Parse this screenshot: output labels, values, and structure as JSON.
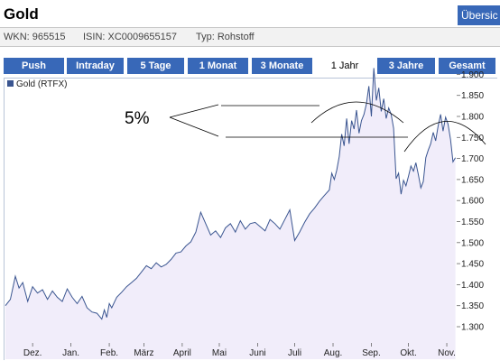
{
  "header": {
    "title": "Gold",
    "overview_label": "Übersic"
  },
  "meta": {
    "wkn": "WKN: 965515",
    "isin": "ISIN: XC0009655157",
    "typ": "Typ: Rohstoff"
  },
  "tabs": [
    {
      "label": "Push",
      "active": false
    },
    {
      "label": "Intraday",
      "active": false
    },
    {
      "label": "5 Tage",
      "active": false
    },
    {
      "label": "1 Monat",
      "active": false
    },
    {
      "label": "3 Monate",
      "active": false
    },
    {
      "label": "1 Jahr",
      "active": true
    },
    {
      "label": "3 Jahre",
      "active": false
    },
    {
      "label": "Gesamt",
      "active": false
    }
  ],
  "colors": {
    "tab_bg": "#3868b8",
    "line": "#3a5590",
    "area": "#f1edfa"
  },
  "chart_data": {
    "type": "area",
    "legend": [
      "Gold (RTFX)"
    ],
    "annotation": "5%",
    "grid": false,
    "ylim": [
      1250,
      1950
    ],
    "yticks": [
      1300,
      1350,
      1400,
      1450,
      1500,
      1550,
      1600,
      1650,
      1700,
      1750,
      1800,
      1850,
      1900
    ],
    "ytick_labels": [
      "1.300",
      "1.350",
      "1.400",
      "1.450",
      "1.500",
      "1.550",
      "1.600",
      "1.650",
      "1.700",
      "1.750",
      "1.800",
      "1.850",
      "1.900"
    ],
    "x_range": [
      0,
      365
    ],
    "xticks": [
      {
        "label": "Dez.",
        "x": 22
      },
      {
        "label": "Jan.",
        "x": 53
      },
      {
        "label": "Feb.",
        "x": 84
      },
      {
        "label": "März",
        "x": 112
      },
      {
        "label": "April",
        "x": 143
      },
      {
        "label": "Mai",
        "x": 173
      },
      {
        "label": "Juni",
        "x": 204
      },
      {
        "label": "Juli",
        "x": 234
      },
      {
        "label": "Aug.",
        "x": 265
      },
      {
        "label": "Sep.",
        "x": 296
      },
      {
        "label": "Okt.",
        "x": 326
      },
      {
        "label": "Nov.",
        "x": 357
      }
    ],
    "series": [
      {
        "name": "Gold (RTFX)",
        "x": [
          0,
          4,
          8,
          11,
          14,
          18,
          22,
          26,
          30,
          34,
          38,
          42,
          46,
          50,
          54,
          58,
          62,
          66,
          70,
          74,
          78,
          80,
          82,
          84,
          86,
          90,
          94,
          98,
          102,
          106,
          110,
          114,
          118,
          122,
          126,
          130,
          134,
          138,
          142,
          146,
          150,
          154,
          158,
          162,
          166,
          170,
          174,
          178,
          182,
          186,
          190,
          194,
          198,
          202,
          206,
          210,
          214,
          218,
          222,
          226,
          230,
          234,
          238,
          242,
          246,
          250,
          254,
          258,
          262,
          264,
          266,
          268,
          270,
          272,
          274,
          276,
          278,
          280,
          282,
          284,
          286,
          288,
          290,
          292,
          294,
          296,
          298,
          300,
          302,
          304,
          306,
          308,
          310,
          312,
          314,
          316,
          318,
          320,
          322,
          324,
          326,
          328,
          330,
          332,
          334,
          336,
          338,
          340,
          342,
          344,
          346,
          348,
          350,
          352,
          354,
          356,
          358,
          360,
          362,
          364
        ],
        "y": [
          1350,
          1365,
          1420,
          1392,
          1405,
          1360,
          1395,
          1380,
          1388,
          1365,
          1385,
          1370,
          1360,
          1390,
          1370,
          1355,
          1372,
          1345,
          1335,
          1332,
          1318,
          1340,
          1322,
          1355,
          1345,
          1370,
          1382,
          1395,
          1405,
          1415,
          1430,
          1445,
          1438,
          1452,
          1442,
          1448,
          1460,
          1475,
          1478,
          1492,
          1502,
          1525,
          1572,
          1545,
          1518,
          1528,
          1512,
          1535,
          1545,
          1525,
          1552,
          1532,
          1545,
          1548,
          1538,
          1528,
          1555,
          1545,
          1532,
          1555,
          1578,
          1505,
          1525,
          1548,
          1568,
          1582,
          1598,
          1612,
          1625,
          1665,
          1650,
          1672,
          1705,
          1758,
          1730,
          1795,
          1735,
          1790,
          1770,
          1815,
          1760,
          1790,
          1805,
          1830,
          1872,
          1800,
          1915,
          1838,
          1868,
          1812,
          1842,
          1795,
          1820,
          1805,
          1772,
          1652,
          1665,
          1615,
          1648,
          1635,
          1658,
          1682,
          1670,
          1690,
          1662,
          1630,
          1645,
          1702,
          1720,
          1735,
          1762,
          1742,
          1778,
          1805,
          1765,
          1798,
          1782,
          1745,
          1692,
          1702
        ]
      }
    ]
  }
}
